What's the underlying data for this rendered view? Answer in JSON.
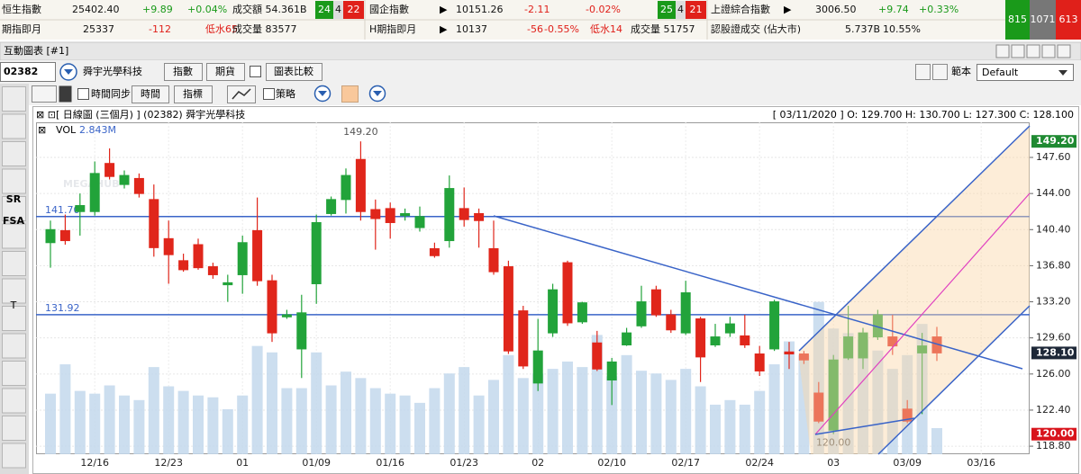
{
  "ticker": {
    "row1": [
      "恒生指數",
      "25402.40",
      "+9.89",
      "+0.04%",
      "成交額 54.361B",
      "24",
      "4",
      "22",
      "國企指數",
      "10151.26",
      "-2.11",
      "-0.02%",
      "25",
      "4",
      "21",
      "上證綜合指數",
      "3006.50",
      "+9.74",
      "+0.33%"
    ],
    "row2": [
      "期指即月",
      "25337",
      "-112",
      "低水65",
      "成交量 83577",
      "H期指即月",
      "10137",
      "-56",
      "-0.55%",
      "低水14",
      "成交量 51757",
      "認股證成交 (佔大市)",
      "5.737B",
      "10.55%"
    ],
    "breadth": [
      "815",
      "1071",
      "613"
    ]
  },
  "window": {
    "title": "互動圖表 [#1]"
  },
  "toolbar": {
    "code": "02382",
    "name": "舜宇光學科技",
    "buttons": [
      "指數",
      "期貨",
      "圖表比較"
    ],
    "template_label": "範本",
    "template": "Default"
  },
  "toolbar2": {
    "sync": "時間同步",
    "buttons": [
      "時間",
      "指標"
    ],
    "strategy": "策略"
  },
  "tools": [
    "SR",
    "FSA",
    "T"
  ],
  "watermark": "MEGAHUB",
  "chart_data": {
    "type": "candlestick",
    "title": "[ 日線圖 (三個月) ] (02382) 舜宇光學科技",
    "info": "[ 03/11/2020 ]   O: 129.700   H: 130.700   L: 127.300   C: 128.100",
    "categories": [
      null,
      null,
      null,
      "12/16",
      null,
      null,
      null,
      null,
      "12/23",
      null,
      null,
      null,
      null,
      "01",
      null,
      null,
      null,
      null,
      "01/09",
      null,
      null,
      null,
      null,
      "01/16",
      null,
      null,
      null,
      null,
      "01/23",
      null,
      null,
      null,
      null,
      "02",
      null,
      null,
      null,
      null,
      "02/10",
      null,
      null,
      null,
      null,
      "02/17",
      null,
      null,
      null,
      null,
      "02/24",
      null,
      null,
      null,
      null,
      "03",
      null,
      null,
      null,
      null,
      "03/09",
      null,
      null,
      null,
      null,
      "03/16"
    ],
    "open": [
      139.1,
      140.3,
      142.2,
      142.2,
      147.0,
      144.9,
      145.5,
      143.4,
      139.5,
      137.3,
      138.9,
      136.7,
      134.9,
      135.9,
      140.3,
      135.3,
      131.7,
      128.5,
      135.0,
      142.0,
      143.4,
      147.4,
      142.4,
      142.5,
      141.8,
      140.6,
      138.5,
      139.3,
      142.5,
      142.0,
      138.5,
      136.7,
      132.3,
      125.1,
      130.1,
      137.1,
      131.2,
      129.1,
      125.4,
      128.9,
      130.8,
      134.4,
      131.9,
      130.1,
      131.5,
      128.9,
      130.1,
      129.8,
      128.0,
      128.5,
      128.2,
      128.0,
      124.1,
      120.4,
      127.6,
      127.6,
      129.7,
      129.7,
      122.5,
      128.1,
      129.7,
      null,
      null,
      null
    ],
    "high": [
      141.3,
      141.9,
      144.0,
      147.2,
      148.5,
      146.3,
      146.0,
      144.9,
      141.3,
      138.0,
      139.5,
      137.1,
      135.9,
      139.8,
      143.6,
      135.9,
      132.4,
      133.9,
      141.9,
      143.7,
      146.5,
      149.2,
      143.4,
      143.1,
      142.5,
      142.7,
      139.1,
      145.8,
      144.6,
      142.5,
      141.3,
      137.3,
      132.8,
      131.5,
      135.0,
      137.3,
      133.2,
      130.3,
      127.6,
      130.6,
      134.8,
      134.8,
      132.4,
      135.3,
      131.7,
      131.0,
      131.7,
      131.9,
      128.8,
      133.4,
      129.2,
      128.3,
      125.2,
      127.9,
      132.8,
      130.6,
      132.4,
      131.9,
      123.4,
      130.1,
      130.7,
      null,
      null,
      null
    ],
    "low": [
      136.6,
      138.9,
      139.8,
      141.8,
      145.4,
      144.5,
      143.6,
      137.7,
      135.0,
      136.2,
      136.4,
      135.5,
      133.2,
      134.0,
      134.8,
      129.2,
      131.5,
      125.6,
      133.0,
      141.8,
      142.0,
      141.3,
      138.4,
      139.5,
      141.3,
      140.2,
      137.6,
      138.6,
      140.7,
      138.6,
      135.9,
      128.0,
      126.5,
      124.3,
      129.7,
      130.8,
      131.0,
      126.3,
      122.9,
      128.8,
      130.6,
      131.7,
      130.1,
      129.9,
      125.2,
      128.7,
      129.7,
      128.6,
      125.8,
      128.3,
      126.5,
      127.0,
      121.1,
      120.0,
      127.4,
      126.5,
      129.4,
      127.9,
      121.1,
      122.0,
      127.3,
      null,
      null,
      null
    ],
    "close": [
      140.4,
      139.3,
      142.8,
      146.0,
      145.7,
      145.8,
      144.0,
      138.6,
      137.9,
      136.4,
      136.6,
      135.9,
      135.1,
      139.1,
      135.3,
      130.1,
      131.9,
      132.1,
      141.1,
      143.4,
      145.8,
      142.2,
      141.5,
      141.1,
      142.0,
      141.7,
      137.8,
      144.5,
      141.4,
      141.3,
      136.2,
      128.3,
      126.8,
      128.3,
      134.4,
      131.1,
      133.1,
      126.5,
      127.2,
      130.1,
      133.2,
      131.9,
      130.4,
      134.1,
      127.7,
      129.7,
      131.0,
      128.9,
      126.3,
      133.2,
      128.0,
      127.4,
      121.3,
      127.4,
      129.7,
      130.1,
      131.9,
      128.8,
      121.3,
      128.8,
      128.1,
      null,
      null,
      null
    ],
    "up_color": "#22a33a",
    "down_color": "#e0261b",
    "volume": {
      "name": "VOL",
      "color": "#c3d8ec",
      "values": [
        6.6,
        9.8,
        6.9,
        6.6,
        7.5,
        6.4,
        5.9,
        9.5,
        7.4,
        6.9,
        6.4,
        6.2,
        4.9,
        6.4,
        11.8,
        11.1,
        7.2,
        7.2,
        11.1,
        7.5,
        9.0,
        8.3,
        7.2,
        6.6,
        6.4,
        5.6,
        7.2,
        8.8,
        9.5,
        6.4,
        8.1,
        10.8,
        8.3,
        8.8,
        9.3,
        10.1,
        9.5,
        13.0,
        8.5,
        10.8,
        9.1,
        8.8,
        8.1,
        9.3,
        7.4,
        5.4,
        5.9,
        5.4,
        6.9,
        9.8,
        12.3,
        10.8,
        16.6,
        13.7,
        13.2,
        12.5,
        11.3,
        9.3,
        10.8,
        14.2,
        2.843,
        null,
        null,
        null
      ],
      "value_labels": [
        null,
        null,
        null,
        null,
        null,
        null,
        null,
        null,
        null,
        null,
        null,
        null,
        null,
        null,
        null,
        null,
        null,
        null,
        null,
        null,
        null,
        null,
        null,
        null,
        null,
        null,
        null,
        null,
        null,
        null,
        null,
        null,
        null,
        null,
        null,
        null,
        null,
        null,
        null,
        null,
        null,
        null,
        null,
        null,
        null,
        null,
        null,
        null,
        null,
        null,
        null,
        null,
        null,
        null,
        null,
        null,
        null,
        null,
        null,
        null,
        "2.843M",
        null,
        null,
        null
      ]
    },
    "ylim": [
      118.0,
      151.1
    ],
    "yticks": [
      {
        "value": 118.8,
        "label": "118.80"
      },
      {
        "value": 122.4,
        "label": "122.40"
      },
      {
        "value": 126.0,
        "label": "126.00"
      },
      {
        "value": 129.6,
        "label": "129.60"
      },
      {
        "value": 133.2,
        "label": "133.20"
      },
      {
        "value": 136.8,
        "label": "136.80"
      },
      {
        "value": 140.4,
        "label": "140.40"
      },
      {
        "value": 144.0,
        "label": "144.00"
      },
      {
        "value": 147.6,
        "label": "147.60"
      }
    ],
    "grid": true,
    "hlines": [
      {
        "value": 141.7,
        "label": "141.70"
      },
      {
        "value": 131.92,
        "label": "131.92"
      }
    ],
    "line_color": "#3a64c8",
    "axis_markers": [
      {
        "value": 149.2,
        "label": "149.20",
        "color": "#1f8a32"
      },
      {
        "value": 128.1,
        "label": "128.10",
        "color": "#1e2838"
      },
      {
        "value": 120.0,
        "label": "120.00",
        "color": "#d8141c"
      }
    ],
    "annotations": [
      {
        "index": 21,
        "value": 149.2,
        "label": "149.20"
      },
      {
        "index": 53,
        "value": 120.0,
        "label": "120.00"
      }
    ]
  }
}
